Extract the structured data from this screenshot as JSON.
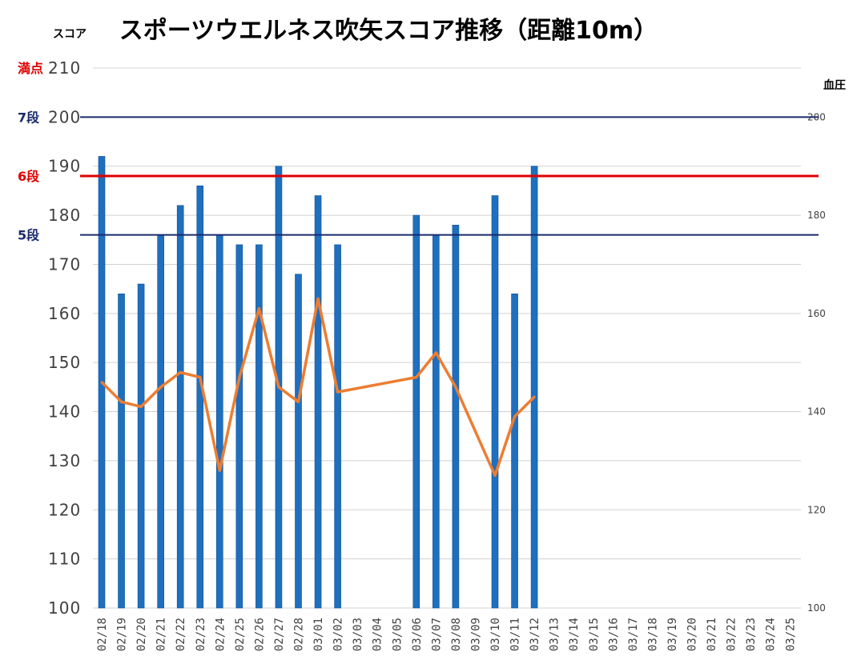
{
  "chart_data": {
    "type": "bar",
    "title": "スポーツウエルネス吹矢スコア推移（距離10m）",
    "ylabel": "スコア",
    "y2label": "血圧",
    "ylim": [
      100,
      210
    ],
    "y2lim": [
      100,
      210
    ],
    "left_ticks": [
      "100",
      "110",
      "120",
      "130",
      "140",
      "150",
      "160",
      "170",
      "180",
      "190",
      "200",
      "210"
    ],
    "right_ticks": [
      "100",
      "120",
      "140",
      "160",
      "180",
      "200"
    ],
    "categories": [
      "02/18",
      "02/19",
      "02/20",
      "02/21",
      "02/22",
      "02/23",
      "02/24",
      "02/25",
      "02/26",
      "02/27",
      "02/28",
      "03/01",
      "03/02",
      "03/03",
      "03/04",
      "03/05",
      "03/06",
      "03/07",
      "03/08",
      "03/09",
      "03/10",
      "03/11",
      "03/12",
      "03/13",
      "03/14",
      "03/15",
      "03/16",
      "03/17",
      "03/18",
      "03/19",
      "03/20",
      "03/21",
      "03/22",
      "03/23",
      "03/24",
      "03/25"
    ],
    "series": [
      {
        "type": "bar",
        "axis": "left",
        "color": "#1f6fbf",
        "values": [
          192,
          164,
          166,
          176,
          182,
          186,
          176,
          174,
          174,
          190,
          168,
          184,
          174,
          null,
          null,
          null,
          180,
          176,
          178,
          null,
          184,
          164,
          190,
          null,
          null,
          null,
          null,
          null,
          null,
          null,
          null,
          null,
          null,
          null,
          null,
          null
        ]
      },
      {
        "type": "line",
        "axis": "right",
        "color": "#ed7d31",
        "values": [
          146,
          142,
          141,
          145,
          148,
          147,
          128,
          147,
          161,
          145,
          142,
          163,
          144,
          null,
          null,
          null,
          147,
          152,
          145,
          null,
          127,
          139,
          143,
          null,
          null,
          null,
          null,
          null,
          null,
          null,
          null,
          null,
          null,
          null,
          null,
          null
        ]
      }
    ],
    "reference_lines": [
      {
        "label": "満点",
        "value": 210,
        "color": "#e00000",
        "line": false
      },
      {
        "label": "7段",
        "value": 200,
        "color": "#1a2a6c",
        "line": true
      },
      {
        "label": "6段",
        "value": 188,
        "color": "#e00000",
        "line": true
      },
      {
        "label": "5段",
        "value": 176,
        "color": "#1a2a6c",
        "line": true
      }
    ]
  }
}
